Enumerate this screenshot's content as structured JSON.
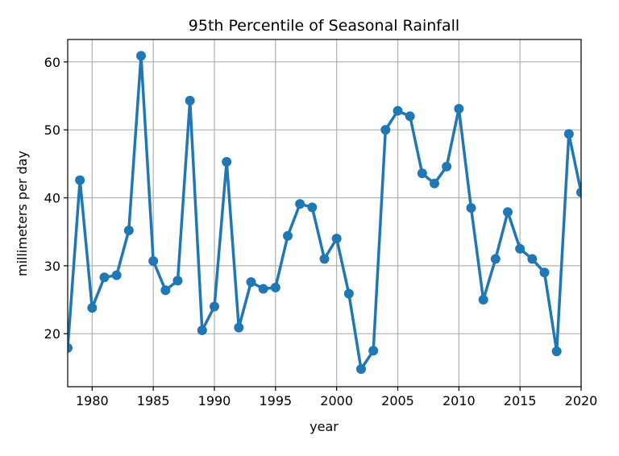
{
  "chart_data": {
    "type": "line",
    "title": "95th Percentile of Seasonal Rainfall",
    "xlabel": "year",
    "ylabel": "millimeters per day",
    "xlim": [
      1978,
      2020
    ],
    "ylim": [
      12.2,
      63.3
    ],
    "xticks": [
      1980,
      1985,
      1990,
      1995,
      2000,
      2005,
      2010,
      2015,
      2020
    ],
    "yticks": [
      20,
      30,
      40,
      50,
      60
    ],
    "grid": true,
    "color": "#1f77b4",
    "marker": "circle",
    "x": [
      1978,
      1979,
      1980,
      1981,
      1982,
      1983,
      1984,
      1985,
      1986,
      1987,
      1988,
      1989,
      1990,
      1991,
      1992,
      1993,
      1994,
      1995,
      1996,
      1997,
      1998,
      1999,
      2000,
      2001,
      2002,
      2003,
      2004,
      2005,
      2006,
      2007,
      2008,
      2009,
      2010,
      2011,
      2012,
      2013,
      2014,
      2015,
      2016,
      2017,
      2018,
      2019,
      2020
    ],
    "y": [
      17.9,
      42.6,
      23.8,
      28.3,
      28.6,
      35.2,
      60.9,
      30.7,
      26.4,
      27.8,
      54.3,
      20.5,
      24.0,
      45.3,
      20.9,
      27.6,
      26.6,
      26.8,
      34.4,
      39.1,
      38.6,
      31.0,
      34.0,
      25.9,
      14.8,
      17.5,
      50.0,
      52.8,
      52.0,
      43.6,
      42.1,
      44.6,
      53.1,
      38.5,
      25.0,
      31.0,
      37.9,
      32.5,
      31.0,
      29.0,
      17.4,
      49.4,
      40.8
    ]
  }
}
